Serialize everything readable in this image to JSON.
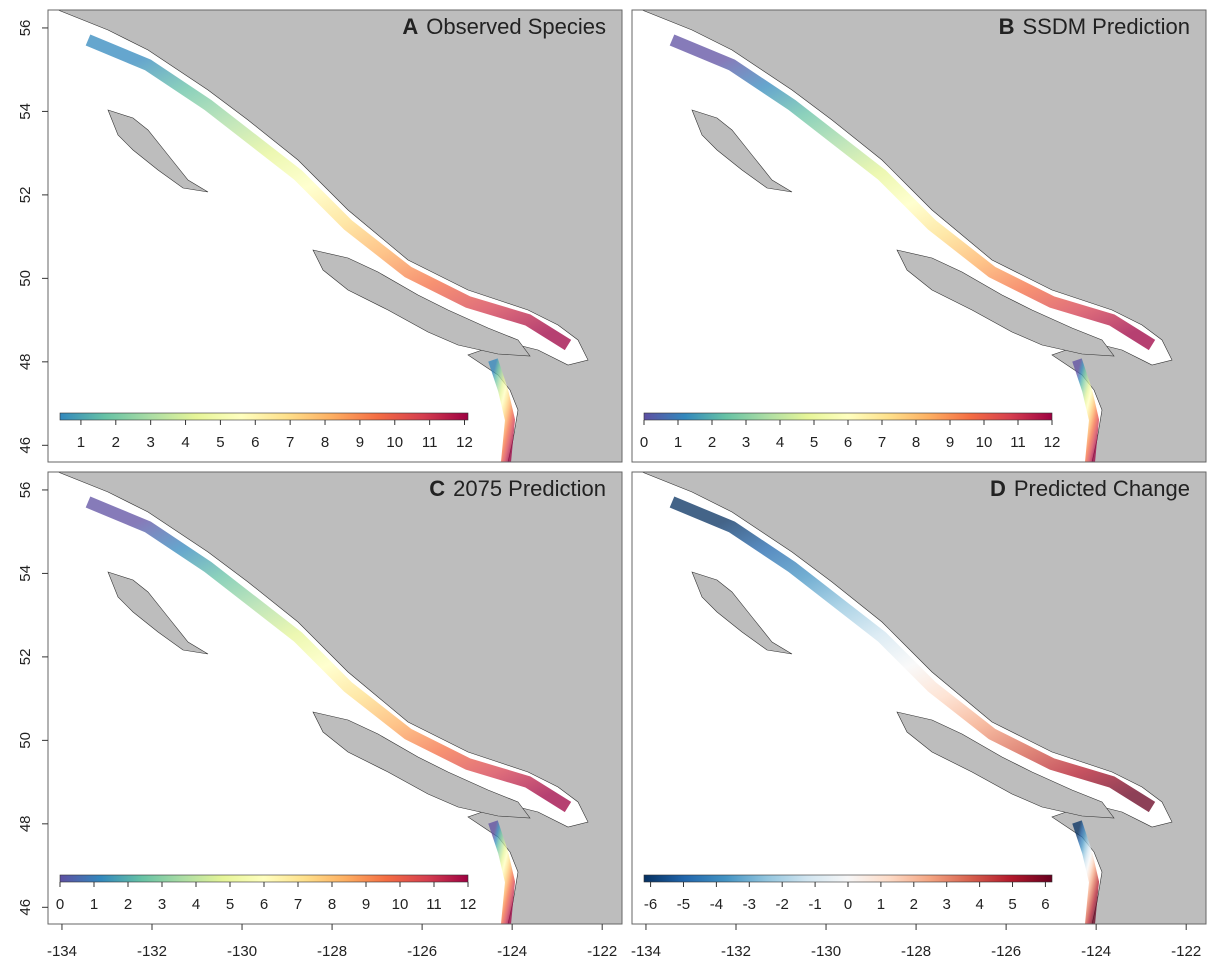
{
  "panels": [
    {
      "letter": "A",
      "title": "Observed Species",
      "colorbar": {
        "range": [
          0.4,
          12.1
        ],
        "ticks": [
          1,
          2,
          3,
          4,
          5,
          6,
          7,
          8,
          9,
          10,
          11,
          12
        ],
        "colors": [
          "#3288bd",
          "#66c2a5",
          "#abdda4",
          "#e6f598",
          "#ffffbf",
          "#fee08b",
          "#fdae61",
          "#f46d43",
          "#d53e4f",
          "#9e0142"
        ]
      }
    },
    {
      "letter": "B",
      "title": "SSDM Prediction",
      "colorbar": {
        "range": [
          0,
          12
        ],
        "ticks": [
          0,
          1,
          2,
          3,
          4,
          5,
          6,
          7,
          8,
          9,
          10,
          11,
          12
        ],
        "colors": [
          "#5e4fa2",
          "#3288bd",
          "#66c2a5",
          "#abdda4",
          "#e6f598",
          "#ffffbf",
          "#fee08b",
          "#fdae61",
          "#f46d43",
          "#d53e4f",
          "#9e0142"
        ]
      }
    },
    {
      "letter": "C",
      "title": "2075 Prediction",
      "colorbar": {
        "range": [
          0,
          12
        ],
        "ticks": [
          0,
          1,
          2,
          3,
          4,
          5,
          6,
          7,
          8,
          9,
          10,
          11,
          12
        ],
        "colors": [
          "#5e4fa2",
          "#3288bd",
          "#66c2a5",
          "#abdda4",
          "#e6f598",
          "#ffffbf",
          "#fee08b",
          "#fdae61",
          "#f46d43",
          "#d53e4f",
          "#9e0142"
        ]
      }
    },
    {
      "letter": "D",
      "title": "Predicted Change",
      "colorbar": {
        "range": [
          -6.2,
          6.2
        ],
        "ticks": [
          -6,
          -5,
          -4,
          -3,
          -2,
          -1,
          0,
          1,
          2,
          3,
          4,
          5,
          6
        ],
        "colors": [
          "#053061",
          "#2166ac",
          "#4393c3",
          "#92c5de",
          "#d1e5f0",
          "#f7f7f7",
          "#fddbc7",
          "#f4a582",
          "#d6604d",
          "#b2182b",
          "#67001f"
        ]
      }
    }
  ],
  "lat_range": [
    45.6,
    56.43
  ],
  "lat_ticks": [
    56,
    54,
    52,
    50,
    48,
    46
  ],
  "lon_range": [
    -134.31,
    -121.56
  ],
  "lon_ticks": [
    -134,
    -132,
    -130,
    -128,
    -126,
    -124,
    -122
  ]
}
